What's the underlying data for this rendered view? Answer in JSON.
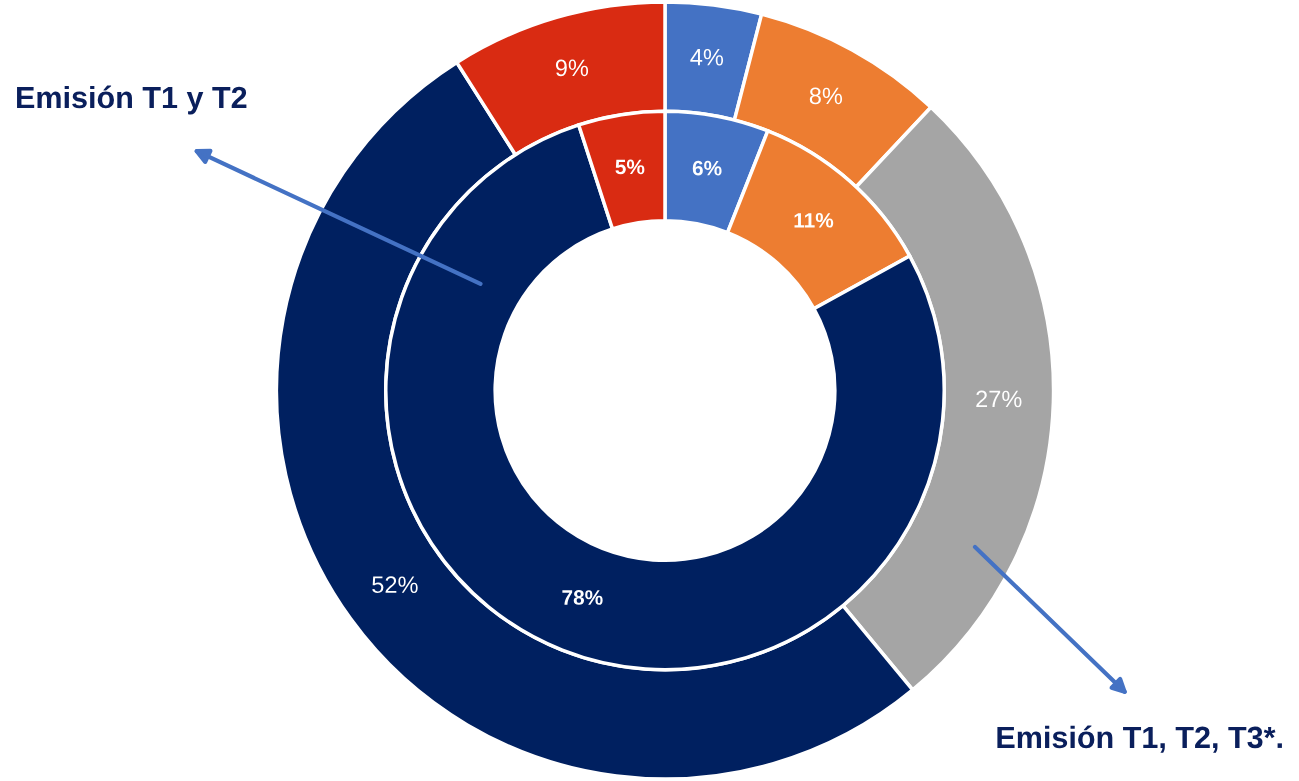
{
  "chart_data": {
    "type": "donut",
    "categories": [
      null,
      null,
      null,
      null,
      null
    ],
    "series": [
      {
        "values": [
          4,
          8,
          27,
          52,
          9
        ],
        "value_labels": [
          "4%",
          "8%",
          "27%",
          "52%",
          "9%"
        ],
        "colors": [
          "#4472c4",
          "#ed7d31",
          "#a5a5a5",
          "#002060",
          "#d92b12"
        ]
      },
      {
        "values": [
          6,
          11,
          null,
          78,
          5
        ],
        "value_labels": [
          "6%",
          "11%",
          null,
          "78%",
          "5%"
        ],
        "colors": [
          "#4472c4",
          "#ed7d31",
          "#a5a5a5",
          "#002060",
          "#d92b12"
        ]
      }
    ],
    "legend": false,
    "annotations": [
      "Emisión T1 y T2",
      "Emisión T1, T2, T3*."
    ]
  }
}
